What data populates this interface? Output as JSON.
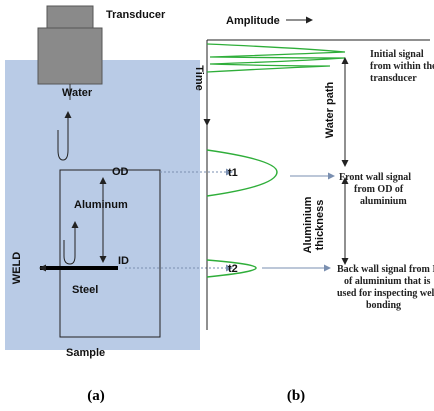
{
  "panel_a": {
    "transducer": "Transducer",
    "water": "Water",
    "aluminum": "Aluminum",
    "od": "OD",
    "id": "ID",
    "weld": "WELD",
    "steel": "Steel",
    "sample": "Sample",
    "caption": "(a)"
  },
  "panel_b": {
    "amplitude": "Amplitude",
    "time": "Time",
    "t1": "t1",
    "t2": "t2",
    "initial_signal": [
      "Initial signal",
      "from within the",
      "transducer"
    ],
    "water_path": "Water path",
    "front_wall": [
      "Front wall signal",
      "from OD of",
      "aluminium"
    ],
    "aluminium_thickness": [
      "Aluminium",
      "thickness"
    ],
    "back_wall": [
      "Back wall signal from ID",
      "of aluminium that is",
      "used for inspecting weld",
      "bonding"
    ],
    "caption": "(b)"
  }
}
